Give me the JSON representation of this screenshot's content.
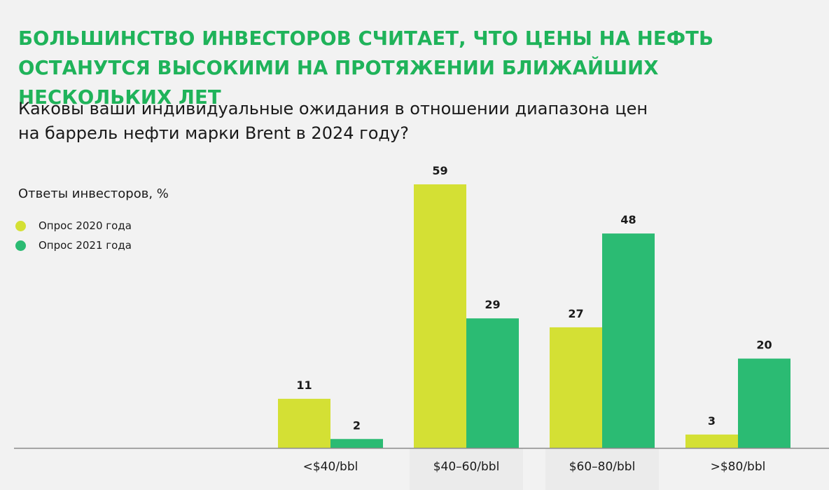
{
  "chart_data": {
    "type": "bar",
    "title": "БОЛЬШИНСТВО ИНВЕСТОРОВ СЧИТАЕТ, ЧТО ЦЕНЫ НА НЕФТЬ ОСТАНУТСЯ ВЫСОКИМИ НА ПРОТЯЖЕНИИ БЛИЖАЙШИХ НЕСКОЛЬКИХ ЛЕТ",
    "subtitle": "Каковы ваши индивидуальные ожидания в отношении диапазона цен на баррель нефти марки Brent в 2024 году?",
    "ylabel": "Ответы инвесторов, %",
    "xlabel": "",
    "categories": [
      "<$40/bbl",
      "$40–60/bbl",
      "$60–80/bbl",
      ">$80/bbl"
    ],
    "series": [
      {
        "name": "Опрос 2020 года",
        "color": "#d4e034",
        "values": [
          11,
          59,
          27,
          3
        ]
      },
      {
        "name": "Опрос 2021 года",
        "color": "#2bbb73",
        "values": [
          2,
          29,
          48,
          20
        ]
      }
    ],
    "ylim": [
      0,
      59
    ],
    "grid": false,
    "legend_position": "top-left",
    "title_color": "#1fb35a",
    "band_color": "#ebebeb"
  }
}
